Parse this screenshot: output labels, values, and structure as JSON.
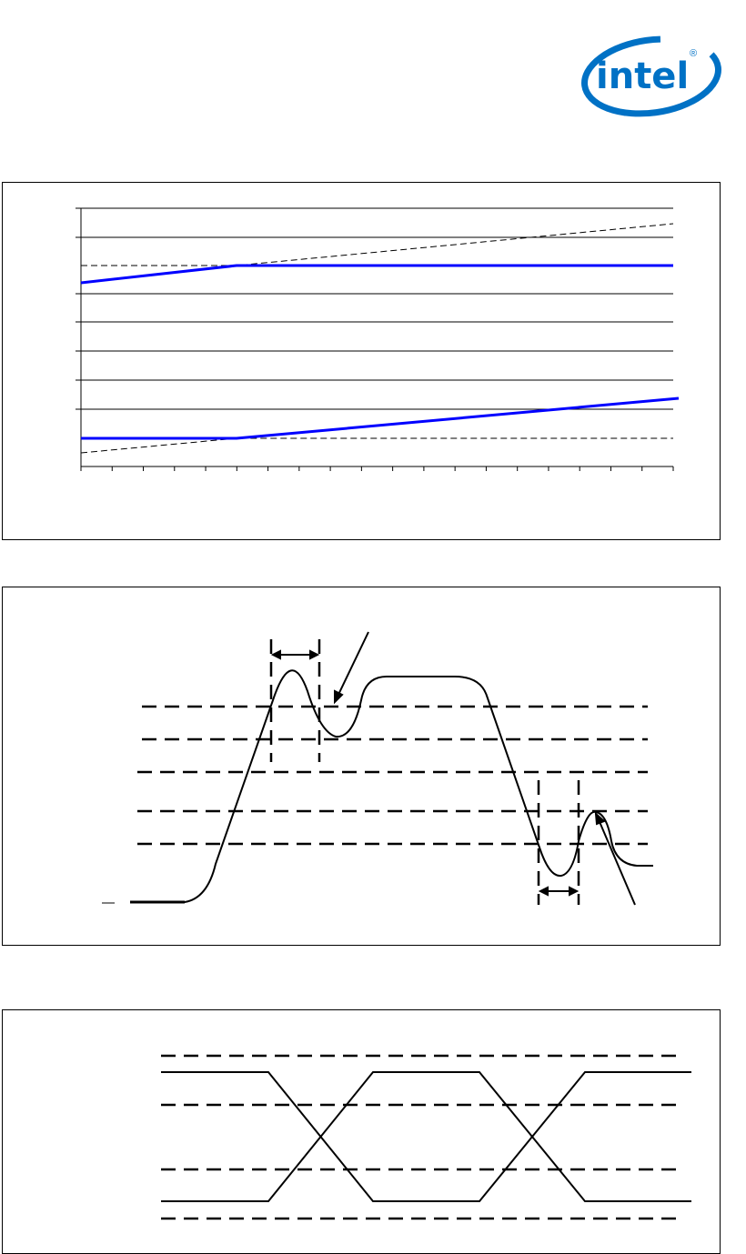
{
  "logo": {
    "text": "intel",
    "mark": "®",
    "color": "#0071c5"
  },
  "colors": {
    "series": "#0000ff",
    "frame": "#000000",
    "dashed": "#000000"
  },
  "figures": [
    {
      "kind": "line-plot",
      "grid": true,
      "x_ticks": 19,
      "labels": "none"
    },
    {
      "kind": "waveform-overshoot-undershoot",
      "labels": "none"
    },
    {
      "kind": "differential-crossing-waveform",
      "labels": "none"
    }
  ]
}
